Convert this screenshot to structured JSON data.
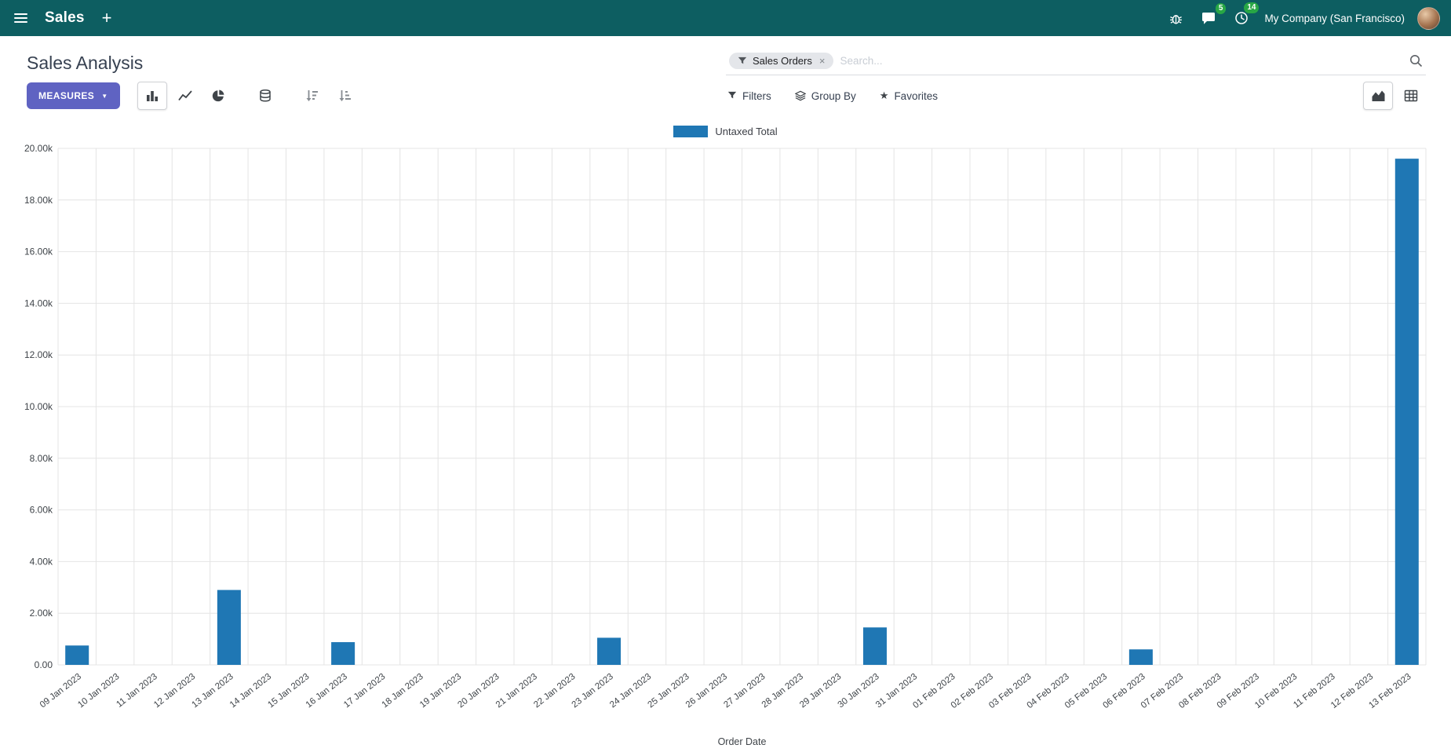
{
  "colors": {
    "navbar_bg": "#0d5e61",
    "primary": "#5f63c2",
    "bar": "#1f77b4",
    "badge": "#28a745",
    "facet_bg": "#e4e6ea"
  },
  "navbar": {
    "app_name": "Sales",
    "plus": "+",
    "messages_count": "5",
    "activities_count": "14",
    "company": "My Company (San Francisco)"
  },
  "control_panel": {
    "title": "Sales Analysis",
    "search": {
      "facet_label": "Sales Orders",
      "remove": "×",
      "placeholder": "Search..."
    },
    "measures_label": "MEASURES",
    "filters_label": "Filters",
    "group_by_label": "Group By",
    "favorites_label": "Favorites"
  },
  "chart_data": {
    "type": "bar",
    "xlabel": "Order Date",
    "ylim": [
      0,
      20000
    ],
    "grid": true,
    "legend_position": "top",
    "y_ticks": [
      0,
      2000,
      4000,
      6000,
      8000,
      10000,
      12000,
      14000,
      16000,
      18000,
      20000
    ],
    "y_tick_labels": [
      "0.00",
      "2.00k",
      "4.00k",
      "6.00k",
      "8.00k",
      "10.00k",
      "12.00k",
      "14.00k",
      "16.00k",
      "18.00k",
      "20.00k"
    ],
    "categories": [
      "09 Jan 2023",
      "10 Jan 2023",
      "11 Jan 2023",
      "12 Jan 2023",
      "13 Jan 2023",
      "14 Jan 2023",
      "15 Jan 2023",
      "16 Jan 2023",
      "17 Jan 2023",
      "18 Jan 2023",
      "19 Jan 2023",
      "20 Jan 2023",
      "21 Jan 2023",
      "22 Jan 2023",
      "23 Jan 2023",
      "24 Jan 2023",
      "25 Jan 2023",
      "26 Jan 2023",
      "27 Jan 2023",
      "28 Jan 2023",
      "29 Jan 2023",
      "30 Jan 2023",
      "31 Jan 2023",
      "01 Feb 2023",
      "02 Feb 2023",
      "03 Feb 2023",
      "04 Feb 2023",
      "05 Feb 2023",
      "06 Feb 2023",
      "07 Feb 2023",
      "08 Feb 2023",
      "09 Feb 2023",
      "10 Feb 2023",
      "11 Feb 2023",
      "12 Feb 2023",
      "13 Feb 2023"
    ],
    "series": [
      {
        "name": "Untaxed Total",
        "color": "#1f77b4",
        "values": [
          750,
          0,
          0,
          0,
          2900,
          0,
          0,
          880,
          0,
          0,
          0,
          0,
          0,
          0,
          1050,
          0,
          0,
          0,
          0,
          0,
          0,
          1450,
          0,
          0,
          0,
          0,
          0,
          0,
          600,
          0,
          0,
          0,
          0,
          0,
          0,
          19600
        ]
      }
    ]
  }
}
